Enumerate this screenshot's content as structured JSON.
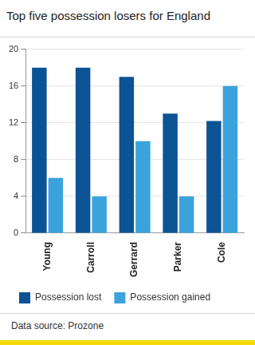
{
  "chart_data": {
    "type": "bar",
    "title": "Top five possession losers for England",
    "source": "Data source: Prozone",
    "categories": [
      "Young",
      "Carroll",
      "Gerrard",
      "Parker",
      "Cole"
    ],
    "series": [
      {
        "name": "Possession lost",
        "color": "#0b5394",
        "values": [
          18,
          18,
          17,
          13,
          12.2
        ]
      },
      {
        "name": "Possession gained",
        "color": "#3aa3dc",
        "values": [
          6,
          4,
          10,
          4,
          16
        ]
      }
    ],
    "ylim": [
      0,
      20
    ],
    "yticks": [
      0,
      4,
      8,
      12,
      16,
      20
    ],
    "grid": true,
    "legend": "bottom"
  }
}
